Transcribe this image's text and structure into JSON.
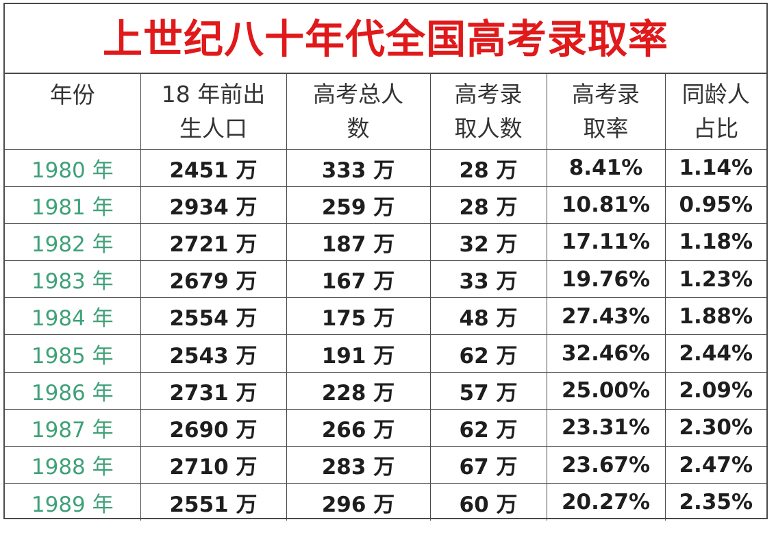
{
  "title": "上世纪八十年代全国高考录取率",
  "columns": [
    [
      "年份"
    ],
    [
      "18 年前出",
      "生人口"
    ],
    [
      "高考总人",
      "数"
    ],
    [
      "高考录",
      "取人数"
    ],
    [
      "高考录",
      "取率"
    ],
    [
      "同龄人",
      "占比"
    ]
  ],
  "rows": [
    [
      "1980 年",
      "2451 万",
      "333 万",
      "28 万",
      "8.41%",
      "1.14%"
    ],
    [
      "1981 年",
      "2934 万",
      "259 万",
      "28 万",
      "10.81%",
      "0.95%"
    ],
    [
      "1982 年",
      "2721 万",
      "187 万",
      "32 万",
      "17.11%",
      "1.18%"
    ],
    [
      "1983 年",
      "2679 万",
      "167 万",
      "33 万",
      "19.76%",
      "1.23%"
    ],
    [
      "1984 年",
      "2554 万",
      "175 万",
      "48 万",
      "27.43%",
      "1.88%"
    ],
    [
      "1985 年",
      "2543 万",
      "191 万",
      "62 万",
      "32.46%",
      "2.44%"
    ],
    [
      "1986 年",
      "2731 万",
      "228 万",
      "57 万",
      "25.00%",
      "2.09%"
    ],
    [
      "1987 年",
      "2690 万",
      "266 万",
      "62 万",
      "23.31%",
      "2.30%"
    ],
    [
      "1988 年",
      "2710 万",
      "283 万",
      "67 万",
      "23.67%",
      "2.47%"
    ],
    [
      "1989 年",
      "2551 万",
      "296 万",
      "60 万",
      "20.27%",
      "2.35%"
    ]
  ],
  "colors": {
    "title": "#e0191b",
    "year": "#3fa178",
    "text": "#1e1e1e",
    "border": "#4a4a4a"
  }
}
